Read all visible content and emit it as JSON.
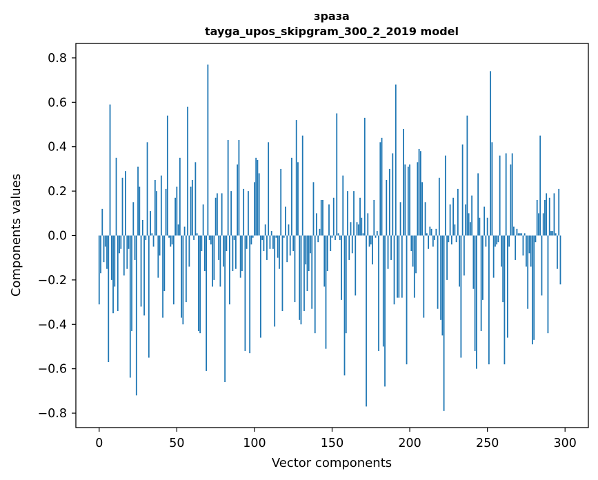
{
  "chart_data": {
    "type": "bar",
    "title_line1": "зраза",
    "title_line2": "tayga_upos_skipgram_300_2_2019 model",
    "xlabel": "Vector components",
    "ylabel": "Components values",
    "xlim": [
      -15,
      315
    ],
    "ylim": [
      -0.865,
      0.865
    ],
    "xticks": [
      0,
      50,
      100,
      150,
      200,
      250,
      300
    ],
    "xtick_labels": [
      "0",
      "50",
      "100",
      "150",
      "200",
      "250",
      "300"
    ],
    "yticks": [
      -0.8,
      -0.6,
      -0.4,
      -0.2,
      0.0,
      0.2,
      0.4,
      0.6,
      0.8
    ],
    "ytick_labels": [
      "−0.8",
      "−0.6",
      "−0.4",
      "−0.2",
      "0.0",
      "0.2",
      "0.4",
      "0.6",
      "0.8"
    ],
    "bar_color": "#1f77b4",
    "values": [
      -0.31,
      -0.17,
      0.12,
      -0.12,
      -0.05,
      -0.15,
      -0.57,
      0.59,
      -0.2,
      -0.35,
      -0.23,
      0.35,
      -0.34,
      -0.08,
      -0.06,
      0.26,
      -0.18,
      0.29,
      -0.15,
      -0.06,
      -0.64,
      -0.43,
      0.15,
      -0.11,
      -0.72,
      0.31,
      0.22,
      -0.32,
      0.07,
      -0.36,
      -0.02,
      0.42,
      -0.55,
      0.11,
      0.01,
      -0.05,
      0.25,
      0.2,
      -0.19,
      -0.09,
      0.27,
      -0.37,
      -0.25,
      0.21,
      0.54,
      -0.01,
      -0.05,
      -0.04,
      -0.31,
      0.17,
      0.22,
      0.05,
      0.35,
      -0.37,
      -0.4,
      0.04,
      -0.3,
      0.58,
      -0.14,
      0.22,
      0.25,
      -0.02,
      0.33,
      0.01,
      -0.43,
      -0.44,
      -0.07,
      0.14,
      -0.16,
      -0.61,
      0.77,
      -0.02,
      -0.04,
      -0.23,
      -0.2,
      0.17,
      0.19,
      -0.11,
      -0.23,
      0.19,
      -0.14,
      -0.66,
      -0.07,
      0.43,
      -0.31,
      0.2,
      -0.16,
      -0.02,
      -0.15,
      0.32,
      0.43,
      -0.19,
      -0.16,
      0.21,
      -0.52,
      -0.06,
      0.2,
      -0.53,
      -0.04,
      -0.01,
      0.24,
      0.35,
      0.34,
      0.28,
      -0.46,
      -0.02,
      -0.07,
      0.05,
      -0.11,
      0.42,
      -0.06,
      0.02,
      -0.06,
      -0.41,
      -0.01,
      -0.1,
      -0.15,
      0.3,
      -0.34,
      -0.01,
      0.13,
      -0.12,
      0.05,
      -0.09,
      0.35,
      -0.07,
      -0.3,
      0.52,
      0.33,
      -0.38,
      -0.4,
      0.45,
      -0.34,
      -0.13,
      -0.25,
      -0.16,
      -0.08,
      -0.33,
      0.24,
      -0.44,
      0.1,
      -0.03,
      0.03,
      0.16,
      0.16,
      -0.23,
      -0.51,
      -0.16,
      0.14,
      -0.07,
      -0.01,
      0.17,
      -0.02,
      0.55,
      0.01,
      -0.02,
      -0.29,
      0.27,
      -0.63,
      -0.44,
      0.2,
      -0.11,
      0.06,
      -0.08,
      0.2,
      -0.27,
      0.06,
      0.05,
      0.17,
      0.08,
      0.01,
      0.53,
      -0.77,
      0.1,
      -0.05,
      -0.04,
      -0.13,
      0.16,
      -0.01,
      0.02,
      -0.52,
      0.42,
      0.44,
      -0.5,
      -0.68,
      0.25,
      -0.15,
      0.3,
      -0.11,
      0.37,
      -0.31,
      0.68,
      -0.28,
      -0.28,
      0.15,
      -0.28,
      0.48,
      0.32,
      -0.58,
      0.31,
      0.32,
      -0.07,
      -0.14,
      -0.28,
      -0.17,
      0.33,
      0.39,
      0.38,
      0.24,
      -0.37,
      0.15,
      0.01,
      -0.06,
      0.04,
      0.03,
      -0.05,
      -0.02,
      0.03,
      -0.33,
      0.26,
      -0.38,
      -0.45,
      -0.79,
      0.36,
      -0.2,
      -0.03,
      0.14,
      -0.04,
      0.17,
      0.05,
      -0.03,
      0.21,
      -0.23,
      -0.55,
      0.41,
      -0.18,
      0.14,
      0.54,
      0.1,
      0.06,
      0.18,
      -0.24,
      -0.52,
      -0.6,
      0.28,
      0.08,
      -0.43,
      -0.29,
      0.13,
      -0.05,
      0.08,
      -0.58,
      0.74,
      0.42,
      -0.19,
      -0.05,
      -0.04,
      -0.03,
      0.36,
      -0.14,
      -0.3,
      -0.58,
      0.37,
      -0.46,
      -0.05,
      0.32,
      0.37,
      0.04,
      -0.11,
      0.03,
      0.01,
      0.01,
      0.01,
      -0.09,
      0.01,
      -0.14,
      -0.33,
      -0.08,
      -0.14,
      -0.49,
      -0.47,
      -0.03,
      0.16,
      0.1,
      0.45,
      -0.27,
      0.1,
      0.16,
      0.19,
      -0.44,
      0.17,
      0.02,
      0.02,
      0.19,
      0.01,
      -0.15,
      0.21,
      -0.22
    ]
  }
}
